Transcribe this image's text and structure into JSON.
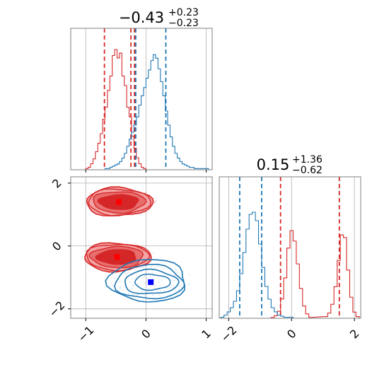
{
  "chart_data": {
    "type": "corner",
    "parameters": 2,
    "titles": {
      "p1": {
        "value": "−0.43",
        "plus": "+0.23",
        "minus": "−0.23"
      },
      "p2": {
        "value": "0.15",
        "plus": "+1.36",
        "minus": "−0.62"
      }
    },
    "x1": {
      "lim": [
        -1.25,
        1.1
      ],
      "ticks": [
        -1,
        0,
        1
      ],
      "ticklabels": [
        "−1",
        "0",
        "1"
      ]
    },
    "x2": {
      "lim": [
        -2.3,
        2.2
      ],
      "ticks": [
        -2,
        0,
        2
      ],
      "ticklabels": [
        "−2",
        "0",
        "2"
      ]
    },
    "grid": true,
    "series": [
      {
        "color": "#d62728",
        "p1_marginal": {
          "bins": [
            -0.98,
            -0.94,
            -0.9,
            -0.86,
            -0.82,
            -0.78,
            -0.74,
            -0.7,
            -0.66,
            -0.62,
            -0.58,
            -0.54,
            -0.5,
            -0.46,
            -0.42,
            -0.38,
            -0.34,
            -0.3,
            -0.26,
            -0.22,
            -0.18,
            -0.14,
            -0.1,
            -0.06,
            -0.02
          ],
          "heights": [
            0.01,
            0.02,
            0.05,
            0.09,
            0.15,
            0.22,
            0.3,
            0.42,
            0.52,
            0.66,
            0.78,
            0.95,
            1.0,
            0.93,
            0.97,
            0.78,
            0.7,
            0.52,
            0.44,
            0.28,
            0.18,
            0.1,
            0.05,
            0.02,
            0.01
          ]
        },
        "p1_quantiles": [
          -0.69,
          -0.25,
          -0.19
        ],
        "p2_marginal": {
          "bins": [
            -0.6,
            -0.5,
            -0.4,
            -0.3,
            -0.2,
            -0.1,
            0.0,
            0.1,
            0.2,
            0.3,
            0.4,
            0.5,
            0.6,
            1.1,
            1.2,
            1.3,
            1.4,
            1.5,
            1.6,
            1.7,
            1.8,
            1.9,
            2.0,
            2.1
          ],
          "heights": [
            0.01,
            0.03,
            0.08,
            0.22,
            0.46,
            0.8,
            1.0,
            0.88,
            0.62,
            0.34,
            0.14,
            0.05,
            0.01,
            0.02,
            0.06,
            0.16,
            0.36,
            0.66,
            0.95,
            0.92,
            0.55,
            0.24,
            0.07,
            0.02
          ]
        },
        "p2_quantiles": [
          -0.35,
          1.52
        ],
        "modes": [
          {
            "x": -0.45,
            "y": 1.4
          },
          {
            "x": -0.48,
            "y": -0.35
          }
        ]
      },
      {
        "color": "#1f77b4",
        "p1_marginal": {
          "bins": [
            -0.66,
            -0.62,
            -0.58,
            -0.54,
            -0.5,
            -0.46,
            -0.42,
            -0.38,
            -0.34,
            -0.3,
            -0.26,
            -0.22,
            -0.18,
            -0.14,
            -0.1,
            -0.06,
            -0.02,
            0.02,
            0.06,
            0.1,
            0.14,
            0.18,
            0.22,
            0.26,
            0.3,
            0.34,
            0.38,
            0.42,
            0.46,
            0.5,
            0.54,
            0.58,
            0.62,
            0.66,
            0.7,
            0.74,
            0.78,
            0.82,
            0.86,
            0.9,
            0.94,
            0.98,
            1.02
          ],
          "heights": [
            0.01,
            0.01,
            0.02,
            0.03,
            0.04,
            0.05,
            0.07,
            0.1,
            0.14,
            0.2,
            0.26,
            0.32,
            0.38,
            0.45,
            0.55,
            0.63,
            0.7,
            0.78,
            0.85,
            0.93,
            0.98,
            0.95,
            0.86,
            0.75,
            0.63,
            0.5,
            0.38,
            0.28,
            0.2,
            0.14,
            0.1,
            0.07,
            0.05,
            0.04,
            0.03,
            0.02,
            0.02,
            0.01,
            0.01,
            0.01,
            0.01,
            0.01,
            0.01
          ]
        },
        "p1_quantiles": [
          -0.17,
          0.33
        ],
        "p2_marginal": {
          "bins": [
            -2.2,
            -2.1,
            -2.0,
            -1.9,
            -1.8,
            -1.7,
            -1.6,
            -1.5,
            -1.4,
            -1.3,
            -1.2,
            -1.1,
            -1.0,
            -0.9,
            -0.8,
            -0.7,
            -0.6,
            -0.5,
            -0.4,
            -0.3,
            -0.2,
            -0.1,
            0.0
          ],
          "heights": [
            0.01,
            0.03,
            0.06,
            0.1,
            0.16,
            0.26,
            0.42,
            0.62,
            0.84,
            0.98,
            1.0,
            0.92,
            0.7,
            0.48,
            0.3,
            0.18,
            0.1,
            0.06,
            0.03,
            0.02,
            0.01,
            0.01,
            0.01
          ]
        },
        "p2_quantiles": [
          -1.65,
          -0.95
        ],
        "modes": [
          {
            "x": 0.08,
            "y": -1.15
          }
        ]
      }
    ]
  }
}
